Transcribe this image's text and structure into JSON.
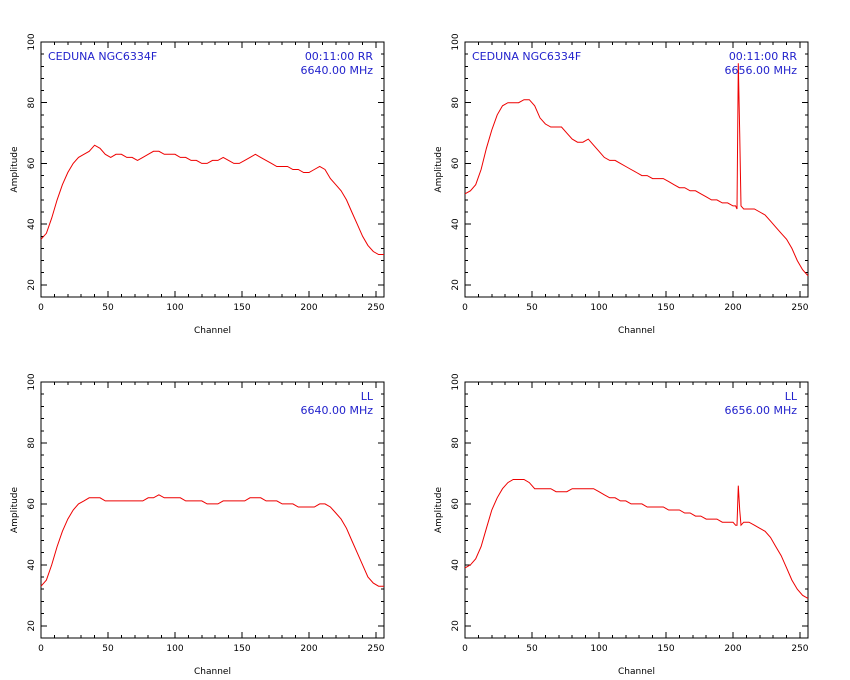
{
  "colors": {
    "line": "#ee0000",
    "annotation": "#2222cc",
    "axes": "#000000"
  },
  "chart_data": [
    {
      "type": "line",
      "title": "",
      "annotation_left": "CEDUNA  NGC6334F",
      "annotation_right": [
        "00:11:00  RR",
        "6640.00  MHz"
      ],
      "xlabel": "Channel",
      "ylabel": "Amplitude",
      "xlim": [
        0,
        256
      ],
      "ylim": [
        16,
        100
      ],
      "x_ticks": [
        0,
        50,
        100,
        150,
        200,
        250
      ],
      "y_ticks": [
        20,
        40,
        60,
        80,
        100
      ],
      "series": [
        {
          "x": [
            0,
            4,
            8,
            12,
            16,
            20,
            24,
            28,
            32,
            36,
            40,
            44,
            48,
            52,
            56,
            60,
            64,
            68,
            72,
            76,
            80,
            84,
            88,
            92,
            96,
            100,
            104,
            108,
            112,
            116,
            120,
            124,
            128,
            132,
            136,
            140,
            144,
            148,
            152,
            156,
            160,
            164,
            168,
            172,
            176,
            180,
            184,
            188,
            192,
            196,
            200,
            204,
            208,
            212,
            216,
            220,
            224,
            228,
            232,
            236,
            240,
            244,
            248,
            252,
            256
          ],
          "y": [
            35,
            37,
            42,
            48,
            53,
            57,
            60,
            62,
            63,
            64,
            66,
            65,
            63,
            62,
            63,
            63,
            62,
            62,
            61,
            62,
            63,
            64,
            64,
            63,
            63,
            63,
            62,
            62,
            61,
            61,
            60,
            60,
            61,
            61,
            62,
            61,
            60,
            60,
            61,
            62,
            63,
            62,
            61,
            60,
            59,
            59,
            59,
            58,
            58,
            57,
            57,
            58,
            59,
            58,
            55,
            53,
            51,
            48,
            44,
            40,
            36,
            33,
            31,
            30,
            30
          ]
        }
      ]
    },
    {
      "type": "line",
      "title": "",
      "annotation_left": "CEDUNA  NGC6334F",
      "annotation_right": [
        "00:11:00  RR",
        "6656.00  MHz"
      ],
      "xlabel": "Channel",
      "ylabel": "Amplitude",
      "xlim": [
        0,
        256
      ],
      "ylim": [
        16,
        100
      ],
      "x_ticks": [
        0,
        50,
        100,
        150,
        200,
        250
      ],
      "y_ticks": [
        20,
        40,
        60,
        80,
        100
      ],
      "series": [
        {
          "x": [
            0,
            4,
            8,
            12,
            16,
            20,
            24,
            28,
            32,
            36,
            40,
            44,
            48,
            52,
            56,
            60,
            64,
            68,
            72,
            76,
            80,
            84,
            88,
            92,
            96,
            100,
            104,
            108,
            112,
            116,
            120,
            124,
            128,
            132,
            136,
            140,
            144,
            148,
            152,
            156,
            160,
            164,
            168,
            172,
            176,
            180,
            184,
            188,
            192,
            196,
            200,
            202,
            203,
            204,
            205,
            206,
            208,
            212,
            216,
            220,
            224,
            228,
            232,
            236,
            240,
            244,
            248,
            252,
            256
          ],
          "y": [
            50,
            51,
            53,
            58,
            65,
            71,
            76,
            79,
            80,
            80,
            80,
            81,
            81,
            79,
            75,
            73,
            72,
            72,
            72,
            70,
            68,
            67,
            67,
            68,
            66,
            64,
            62,
            61,
            61,
            60,
            59,
            58,
            57,
            56,
            56,
            55,
            55,
            55,
            54,
            53,
            52,
            52,
            51,
            51,
            50,
            49,
            48,
            48,
            47,
            47,
            46,
            46,
            45,
            93,
            70,
            46,
            45,
            45,
            45,
            44,
            43,
            41,
            39,
            37,
            35,
            32,
            28,
            25,
            23
          ]
        }
      ]
    },
    {
      "type": "line",
      "title": "",
      "annotation_left": "",
      "annotation_right": [
        "LL",
        "6640.00  MHz"
      ],
      "xlabel": "Channel",
      "ylabel": "Amplitude",
      "xlim": [
        0,
        256
      ],
      "ylim": [
        16,
        100
      ],
      "x_ticks": [
        0,
        50,
        100,
        150,
        200,
        250
      ],
      "y_ticks": [
        20,
        40,
        60,
        80,
        100
      ],
      "series": [
        {
          "x": [
            0,
            4,
            8,
            12,
            16,
            20,
            24,
            28,
            32,
            36,
            40,
            44,
            48,
            52,
            56,
            60,
            64,
            68,
            72,
            76,
            80,
            84,
            88,
            92,
            96,
            100,
            104,
            108,
            112,
            116,
            120,
            124,
            128,
            132,
            136,
            140,
            144,
            148,
            152,
            156,
            160,
            164,
            168,
            172,
            176,
            180,
            184,
            188,
            192,
            196,
            200,
            204,
            208,
            212,
            216,
            220,
            224,
            228,
            232,
            236,
            240,
            244,
            248,
            252,
            256
          ],
          "y": [
            33,
            35,
            40,
            46,
            51,
            55,
            58,
            60,
            61,
            62,
            62,
            62,
            61,
            61,
            61,
            61,
            61,
            61,
            61,
            61,
            62,
            62,
            63,
            62,
            62,
            62,
            62,
            61,
            61,
            61,
            61,
            60,
            60,
            60,
            61,
            61,
            61,
            61,
            61,
            62,
            62,
            62,
            61,
            61,
            61,
            60,
            60,
            60,
            59,
            59,
            59,
            59,
            60,
            60,
            59,
            57,
            55,
            52,
            48,
            44,
            40,
            36,
            34,
            33,
            33
          ]
        }
      ]
    },
    {
      "type": "line",
      "title": "",
      "annotation_left": "",
      "annotation_right": [
        "LL",
        "6656.00  MHz"
      ],
      "xlabel": "Channel",
      "ylabel": "Amplitude",
      "xlim": [
        0,
        256
      ],
      "ylim": [
        16,
        100
      ],
      "x_ticks": [
        0,
        50,
        100,
        150,
        200,
        250
      ],
      "y_ticks": [
        20,
        40,
        60,
        80,
        100
      ],
      "series": [
        {
          "x": [
            0,
            4,
            8,
            12,
            16,
            20,
            24,
            28,
            32,
            36,
            40,
            44,
            48,
            52,
            56,
            60,
            64,
            68,
            72,
            76,
            80,
            84,
            88,
            92,
            96,
            100,
            104,
            108,
            112,
            116,
            120,
            124,
            128,
            132,
            136,
            140,
            144,
            148,
            152,
            156,
            160,
            164,
            168,
            172,
            176,
            180,
            184,
            188,
            192,
            196,
            200,
            202,
            203,
            204,
            205,
            206,
            208,
            212,
            216,
            220,
            224,
            228,
            232,
            236,
            240,
            244,
            248,
            252,
            256
          ],
          "y": [
            39,
            40,
            42,
            46,
            52,
            58,
            62,
            65,
            67,
            68,
            68,
            68,
            67,
            65,
            65,
            65,
            65,
            64,
            64,
            64,
            65,
            65,
            65,
            65,
            65,
            64,
            63,
            62,
            62,
            61,
            61,
            60,
            60,
            60,
            59,
            59,
            59,
            59,
            58,
            58,
            58,
            57,
            57,
            56,
            56,
            55,
            55,
            55,
            54,
            54,
            54,
            53,
            53,
            66,
            58,
            53,
            54,
            54,
            53,
            52,
            51,
            49,
            46,
            43,
            39,
            35,
            32,
            30,
            29
          ]
        }
      ]
    }
  ]
}
